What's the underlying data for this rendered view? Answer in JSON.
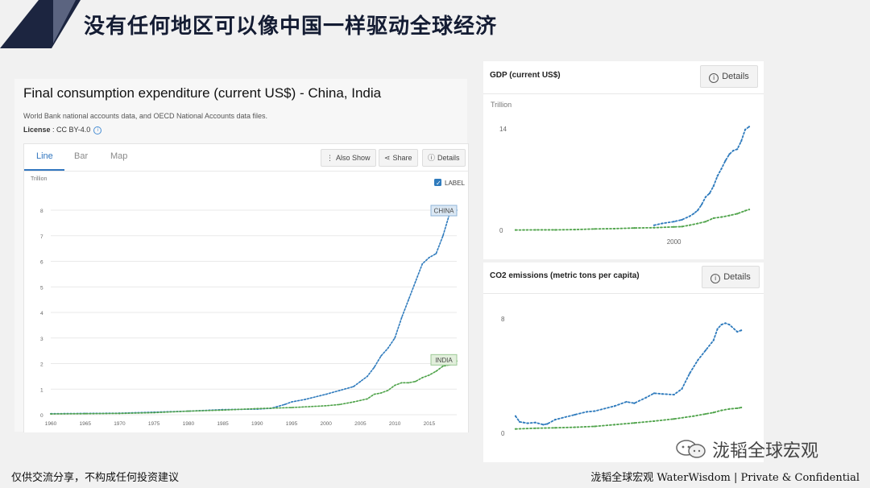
{
  "slide": {
    "title": "没有任何地区可以像中国一样驱动全球经济",
    "footer_left": "仅供交流分享，不构成任何投资建议",
    "footer_right": "泷韬全球宏观 WaterWisdom | Private & Confidential",
    "watermark": "泷韬全球宏观",
    "colors": {
      "navy": "#1c2540",
      "china": "#2f7bbd",
      "india": "#4fa34a"
    }
  },
  "main_panel": {
    "title": "Final consumption expenditure (current US$) - China, India",
    "source": "World Bank national accounts data, and OECD National Accounts data files.",
    "license_label": "License",
    "license_value": " : CC BY-4.0",
    "tabs": [
      "Line",
      "Bar",
      "Map"
    ],
    "buttons": {
      "also_show": "Also Show",
      "share": "Share",
      "details": "Details"
    },
    "label_toggle": "LABEL"
  },
  "gdp_panel": {
    "title": "GDP (current US$)",
    "details": "Details"
  },
  "co2_panel": {
    "title": "CO2 emissions (metric tons per capita)",
    "details": "Details"
  },
  "chart_data": [
    {
      "type": "line",
      "title": "Final consumption expenditure (current US$) - China, India",
      "ylabel": "Trillion",
      "ylim": [
        0,
        8
      ],
      "yticks": [
        0,
        1,
        2,
        3,
        4,
        5,
        6,
        7,
        8
      ],
      "xlim": [
        1960,
        2019
      ],
      "xticks": [
        1960,
        1965,
        1970,
        1975,
        1980,
        1985,
        1990,
        1995,
        2000,
        2005,
        2010,
        2015
      ],
      "grid": true,
      "series": [
        {
          "name": "CHINA",
          "x": [
            1960,
            1965,
            1970,
            1975,
            1980,
            1985,
            1990,
            1992,
            1994,
            1995,
            1997,
            2000,
            2002,
            2004,
            2005,
            2006,
            2007,
            2008,
            2009,
            2010,
            2011,
            2012,
            2013,
            2014,
            2015,
            2016,
            2017,
            2018,
            2019
          ],
          "values": [
            0.04,
            0.05,
            0.06,
            0.1,
            0.14,
            0.2,
            0.22,
            0.25,
            0.4,
            0.5,
            0.6,
            0.8,
            0.95,
            1.1,
            1.3,
            1.5,
            1.85,
            2.3,
            2.6,
            3.0,
            3.8,
            4.5,
            5.2,
            5.9,
            6.15,
            6.3,
            7.0,
            7.9,
            8.0
          ]
        },
        {
          "name": "INDIA",
          "x": [
            1960,
            1965,
            1970,
            1975,
            1980,
            1985,
            1990,
            1995,
            2000,
            2002,
            2004,
            2005,
            2006,
            2007,
            2008,
            2009,
            2010,
            2011,
            2012,
            2013,
            2014,
            2015,
            2016,
            2017,
            2018,
            2019
          ],
          "values": [
            0.03,
            0.04,
            0.05,
            0.08,
            0.14,
            0.18,
            0.24,
            0.28,
            0.35,
            0.4,
            0.5,
            0.56,
            0.62,
            0.8,
            0.85,
            0.95,
            1.15,
            1.25,
            1.25,
            1.3,
            1.45,
            1.55,
            1.7,
            1.9,
            1.95,
            2.1
          ]
        }
      ]
    },
    {
      "type": "line",
      "title": "GDP (current US$)",
      "ylabel": "Trillion",
      "ylim": [
        0,
        14
      ],
      "yticks": [
        0,
        14
      ],
      "xlim": [
        1960,
        2019
      ],
      "xticks": [
        2000
      ],
      "grid": false,
      "series": [
        {
          "x": [
            1995,
            1997,
            2000,
            2002,
            2004,
            2005,
            2006,
            2007,
            2008,
            2009,
            2010,
            2011,
            2012,
            2013,
            2014,
            2015,
            2016,
            2017,
            2018,
            2019
          ],
          "values": [
            0.7,
            0.95,
            1.2,
            1.45,
            1.95,
            2.3,
            2.75,
            3.55,
            4.6,
            5.1,
            6.1,
            7.5,
            8.5,
            9.6,
            10.5,
            11.0,
            11.2,
            12.3,
            13.9,
            14.3
          ]
        },
        {
          "x": [
            1960,
            1965,
            1970,
            1975,
            1980,
            1985,
            1990,
            1995,
            2000,
            2002,
            2004,
            2006,
            2008,
            2010,
            2012,
            2014,
            2016,
            2018,
            2019
          ],
          "values": [
            0.04,
            0.06,
            0.06,
            0.1,
            0.19,
            0.23,
            0.32,
            0.36,
            0.47,
            0.51,
            0.71,
            0.94,
            1.2,
            1.68,
            1.83,
            2.04,
            2.29,
            2.7,
            2.87
          ]
        }
      ]
    },
    {
      "type": "line",
      "title": "CO2 emissions (metric tons per capita)",
      "ylim": [
        0,
        8
      ],
      "yticks": [
        0,
        8
      ],
      "xlim": [
        1960,
        2019
      ],
      "grid": false,
      "series": [
        {
          "x": [
            1960,
            1961,
            1962,
            1963,
            1965,
            1967,
            1968,
            1970,
            1975,
            1978,
            1980,
            1985,
            1988,
            1990,
            1993,
            1995,
            1997,
            2000,
            2002,
            2004,
            2006,
            2008,
            2010,
            2011,
            2012,
            2013,
            2014,
            2016,
            2017
          ],
          "values": [
            1.2,
            0.8,
            0.75,
            0.7,
            0.75,
            0.6,
            0.65,
            0.95,
            1.3,
            1.5,
            1.55,
            1.9,
            2.2,
            2.1,
            2.5,
            2.8,
            2.75,
            2.7,
            3.1,
            4.2,
            5.1,
            5.8,
            6.5,
            7.3,
            7.6,
            7.7,
            7.6,
            7.1,
            7.2
          ]
        },
        {
          "x": [
            1960,
            1965,
            1970,
            1975,
            1980,
            1985,
            1990,
            1995,
            2000,
            2005,
            2008,
            2010,
            2012,
            2014,
            2016,
            2017
          ],
          "values": [
            0.3,
            0.35,
            0.38,
            0.42,
            0.48,
            0.6,
            0.72,
            0.85,
            1.0,
            1.2,
            1.35,
            1.45,
            1.6,
            1.7,
            1.75,
            1.8
          ]
        }
      ]
    }
  ]
}
